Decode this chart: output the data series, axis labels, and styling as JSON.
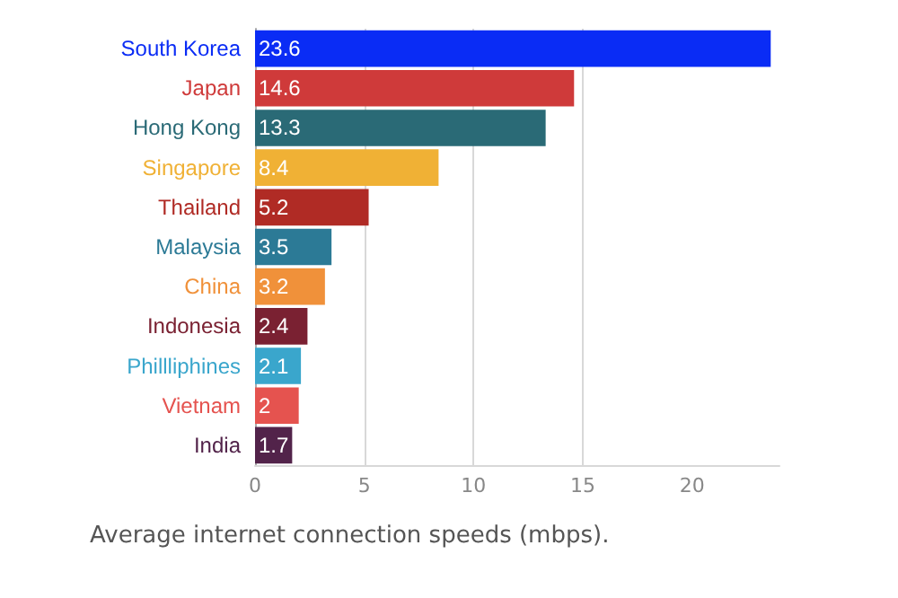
{
  "chart_data": {
    "type": "bar",
    "orientation": "horizontal",
    "categories": [
      "South Korea",
      "Japan",
      "Hong Kong",
      "Singapore",
      "Thailand",
      "Malaysia",
      "China",
      "Indonesia",
      "Phillliphines",
      "Vietnam",
      "India"
    ],
    "values": [
      23.6,
      14.6,
      13.3,
      8.4,
      5.2,
      3.5,
      3.2,
      2.4,
      2.1,
      2,
      1.7
    ],
    "colors": [
      "#0a2cf5",
      "#cf3a3a",
      "#2a6a76",
      "#f0b135",
      "#b02b25",
      "#2c7a96",
      "#f0913a",
      "#7a2132",
      "#3aa6cc",
      "#e5534f",
      "#52234a"
    ],
    "xlim": [
      0,
      24
    ],
    "xticks": [
      0,
      5,
      10,
      15,
      20
    ],
    "grid": "x",
    "data_labels": true,
    "annotations": [
      "Average internet connection speeds (mbps)."
    ]
  }
}
